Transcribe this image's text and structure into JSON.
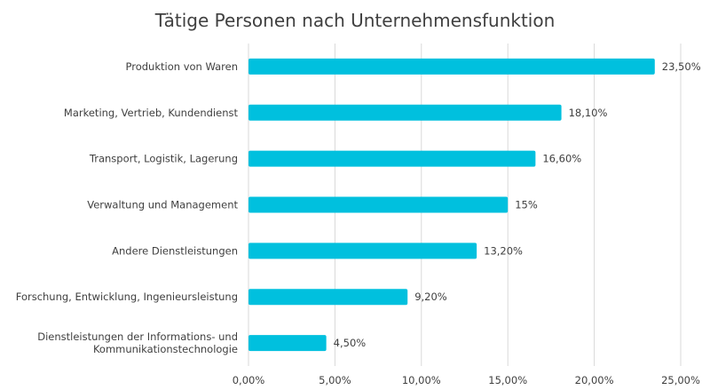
{
  "chart_data": {
    "type": "bar",
    "orientation": "horizontal",
    "title": "Tätige Personen nach Unternehmensfunktion",
    "categories": [
      [
        "Produktion von Waren"
      ],
      [
        "Marketing, Vertrieb, Kundendienst"
      ],
      [
        "Transport, Logistik, Lagerung"
      ],
      [
        "Verwaltung und Management"
      ],
      [
        "Andere Dienstleistungen"
      ],
      [
        "Forschung, Entwicklung, Ingenieursleistung"
      ],
      [
        "Dienstleistungen der Informations- und",
        "Kommunikationstechnologie"
      ]
    ],
    "values": [
      23.5,
      18.1,
      16.6,
      15,
      13.2,
      9.2,
      4.5
    ],
    "data_labels": [
      "23,50%",
      "18,10%",
      "16,60%",
      "15%",
      "13,20%",
      "9,20%",
      "4,50%"
    ],
    "xlim": [
      0,
      25
    ],
    "x_ticks": [
      0,
      5,
      10,
      15,
      20,
      25
    ],
    "x_tick_labels": [
      "0,00%",
      "5,00%",
      "10,00%",
      "15,00%",
      "20,00%",
      "25,00%"
    ],
    "grid": "vertical",
    "legend": "none",
    "bar_color": "#00C0DE",
    "grid_color": "#D9D9D9"
  }
}
